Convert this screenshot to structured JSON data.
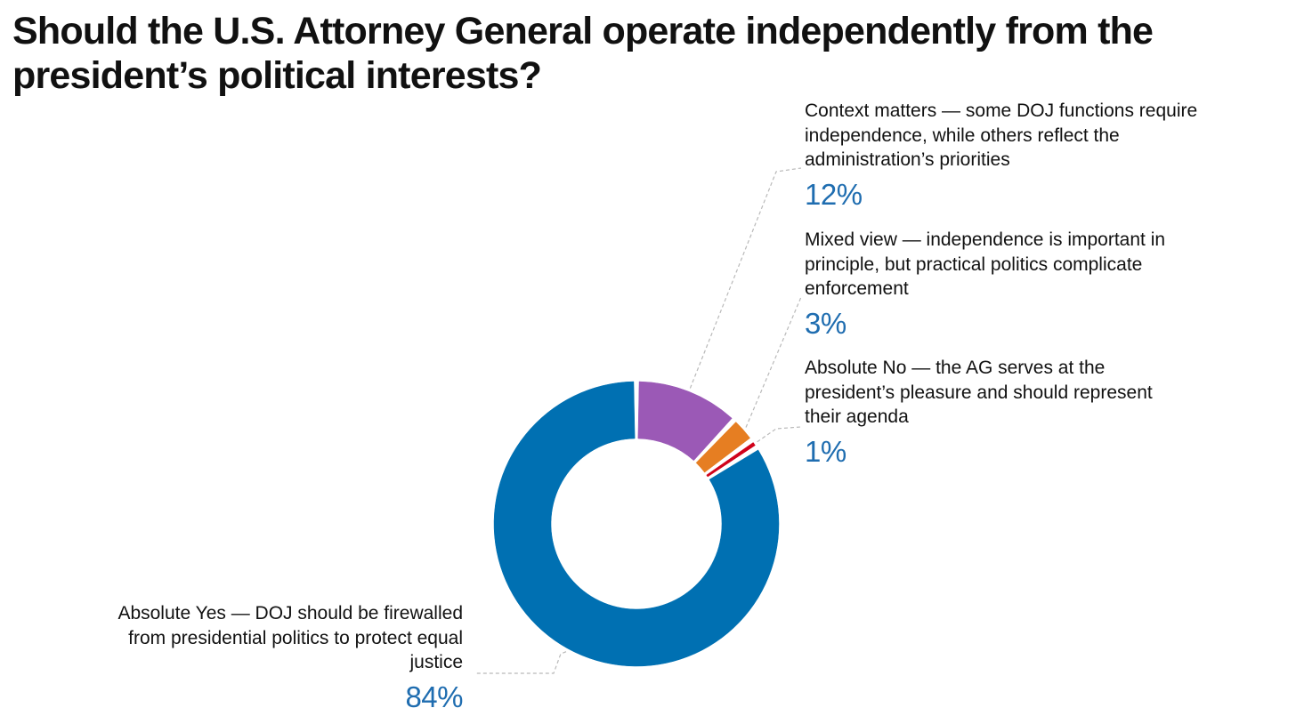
{
  "chart_data": {
    "type": "pie",
    "title": "Should the U.S. Attorney General operate independently from the president’s political interests?",
    "donut": true,
    "slices": [
      {
        "label": "Context matters — some DOJ functions require independence, while others reflect the administration’s priorities",
        "value": 12,
        "value_label": "12%",
        "color": "#9b59b6"
      },
      {
        "label": "Mixed view — independence is important in principle, but practical politics complicate enforcement",
        "value": 3,
        "value_label": "3%",
        "color": "#e67e22"
      },
      {
        "label": "Absolute No — the AG serves at the president’s pleasure and should represent their agenda",
        "value": 1,
        "value_label": "1%",
        "color": "#d0021b"
      },
      {
        "label": "Absolute Yes — DOJ should be firewalled from presidential politics to protect equal justice",
        "value": 84,
        "value_label": "84%",
        "color": "#0070b2"
      }
    ]
  }
}
